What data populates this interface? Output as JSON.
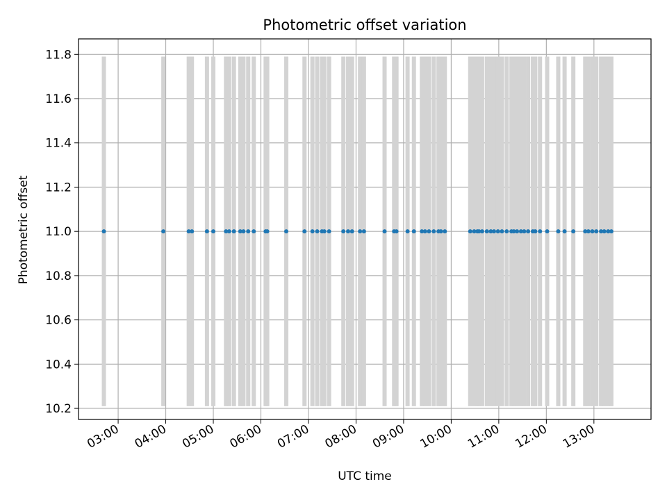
{
  "chart_data": {
    "type": "scatter",
    "title": "Photometric offset variation",
    "xlabel": "UTC time",
    "ylabel": "Photometric offset",
    "x_ticks": [
      "03:00",
      "04:00",
      "05:00",
      "06:00",
      "07:00",
      "08:00",
      "09:00",
      "10:00",
      "11:00",
      "12:00",
      "13:00"
    ],
    "y_ticks": [
      "10.2",
      "10.4",
      "10.6",
      "10.8",
      "11.0",
      "11.2",
      "11.4",
      "11.6",
      "11.8"
    ],
    "xlim": [
      "02:10",
      "14:12"
    ],
    "ylim": [
      10.15,
      11.87
    ],
    "grid": true,
    "colors": {
      "points": "#1f77b4",
      "error_bars": "#d3d3d3",
      "grid": "#b0b0b0"
    },
    "series": [
      {
        "x": [
          "02:42",
          "03:57",
          "04:29",
          "04:33",
          "04:52",
          "05:00",
          "05:16",
          "05:20",
          "05:26",
          "05:34",
          "05:38",
          "05:44",
          "05:51",
          "06:06",
          "06:08",
          "06:32",
          "06:55",
          "07:05",
          "07:11",
          "07:17",
          "07:20",
          "07:26",
          "07:44",
          "07:50",
          "07:55",
          "08:05",
          "08:10",
          "08:36",
          "08:48",
          "08:51",
          "09:05",
          "09:13",
          "09:23",
          "09:27",
          "09:32",
          "09:38",
          "09:44",
          "09:47",
          "09:52",
          "10:24",
          "10:29",
          "10:33",
          "10:35",
          "10:39",
          "10:45",
          "10:50",
          "10:54",
          "10:59",
          "11:04",
          "11:10",
          "11:16",
          "11:19",
          "11:23",
          "11:28",
          "11:32",
          "11:37",
          "11:43",
          "11:46",
          "11:52",
          "12:01",
          "12:15",
          "12:23",
          "12:34",
          "12:49",
          "12:53",
          "12:58",
          "13:03",
          "13:09",
          "13:13",
          "13:18",
          "13:22"
        ],
        "y": [
          11.0,
          11.0,
          11.0,
          11.0,
          11.0,
          11.0,
          11.0,
          11.0,
          11.0,
          11.0,
          11.0,
          11.0,
          11.0,
          11.0,
          11.0,
          11.0,
          11.0,
          11.0,
          11.0,
          11.0,
          11.0,
          11.0,
          11.0,
          11.0,
          11.0,
          11.0,
          11.0,
          11.0,
          11.0,
          11.0,
          11.0,
          11.0,
          11.0,
          11.0,
          11.0,
          11.0,
          11.0,
          11.0,
          11.0,
          11.0,
          11.0,
          11.0,
          11.0,
          11.0,
          11.0,
          11.0,
          11.0,
          11.0,
          11.0,
          11.0,
          11.0,
          11.0,
          11.0,
          11.0,
          11.0,
          11.0,
          11.0,
          11.0,
          11.0,
          11.0,
          11.0,
          11.0,
          11.0,
          11.0,
          11.0,
          11.0,
          11.0,
          11.0,
          11.0,
          11.0,
          11.0
        ],
        "y_err": [
          0.79,
          0.79,
          0.79,
          0.79,
          0.79,
          0.79,
          0.79,
          0.79,
          0.79,
          0.79,
          0.79,
          0.79,
          0.79,
          0.79,
          0.79,
          0.79,
          0.79,
          0.79,
          0.79,
          0.79,
          0.79,
          0.79,
          0.79,
          0.79,
          0.79,
          0.79,
          0.79,
          0.79,
          0.79,
          0.79,
          0.79,
          0.79,
          0.79,
          0.79,
          0.79,
          0.79,
          0.79,
          0.79,
          0.79,
          0.79,
          0.79,
          0.79,
          0.79,
          0.79,
          0.79,
          0.79,
          0.79,
          0.79,
          0.79,
          0.79,
          0.79,
          0.79,
          0.79,
          0.79,
          0.79,
          0.79,
          0.79,
          0.79,
          0.79,
          0.79,
          0.79,
          0.79,
          0.79,
          0.79,
          0.79,
          0.79,
          0.79,
          0.79,
          0.79,
          0.79,
          0.79
        ]
      }
    ]
  }
}
